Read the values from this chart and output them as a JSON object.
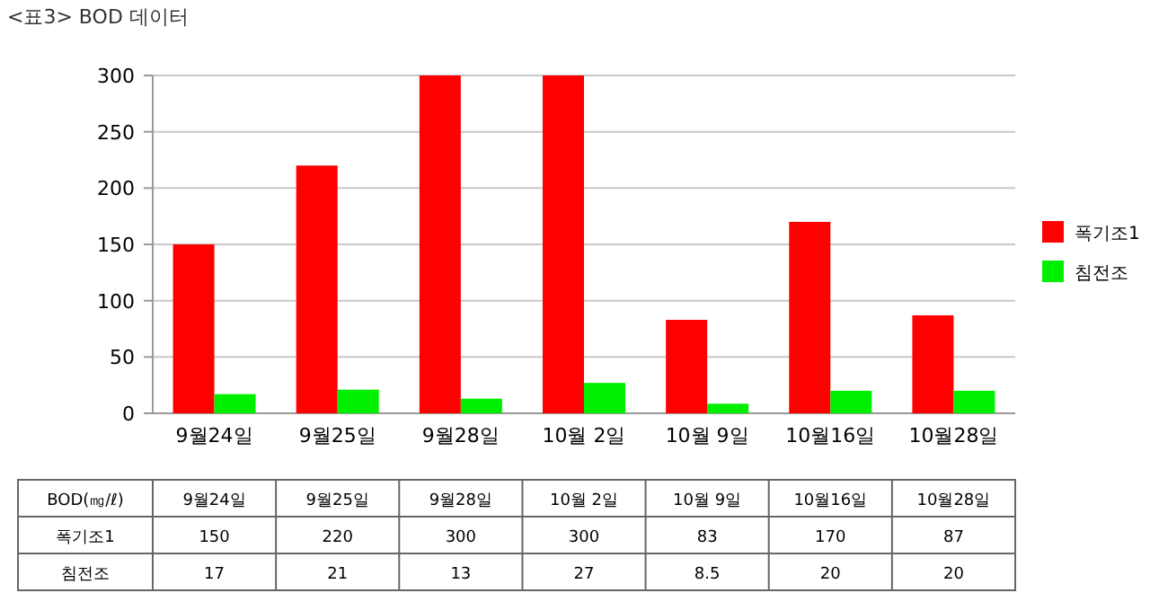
{
  "chart_data": {
    "type": "bar",
    "title": "<표3> BOD 데이터",
    "categories": [
      "9월24일",
      "9월25일",
      "9월28일",
      "10월 2일",
      "10월 9일",
      "10월16일",
      "10월28일"
    ],
    "series": [
      {
        "name": "폭기조1",
        "color": "#ff0000",
        "values": [
          150,
          220,
          300,
          300,
          83,
          170,
          87
        ],
        "value_labels": [
          "150",
          "220",
          "300",
          "300",
          "83",
          "170",
          "87"
        ]
      },
      {
        "name": "침전조",
        "color": "#00ee00",
        "values": [
          17,
          21,
          13,
          27,
          8.5,
          20,
          20
        ],
        "value_labels": [
          "17",
          "21",
          "13",
          "27",
          "8.5",
          "20",
          "20"
        ]
      }
    ],
    "ylim": [
      0,
      300
    ],
    "yticks": [
      0,
      50,
      100,
      150,
      200,
      250,
      300
    ],
    "grid": "y",
    "legend": "right",
    "annotations": [
      "BOD(㎎/ℓ)"
    ]
  }
}
